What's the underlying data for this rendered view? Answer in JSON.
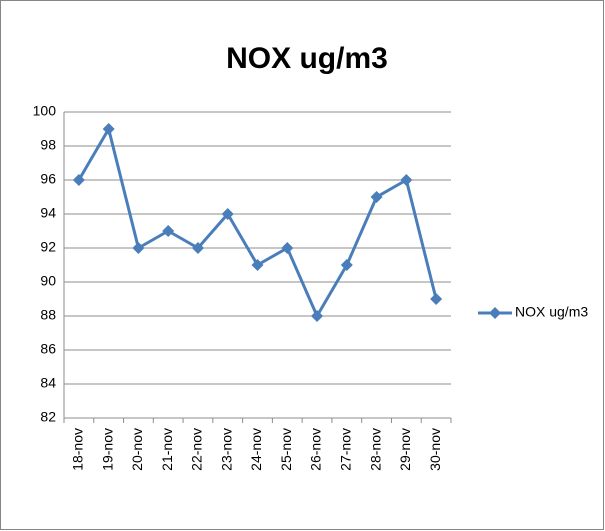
{
  "chart_data": {
    "type": "line",
    "title": "NOX ug/m3",
    "categories": [
      "18-nov",
      "19-nov",
      "20-nov",
      "21-nov",
      "22-nov",
      "23-nov",
      "24-nov",
      "25-nov",
      "26-nov",
      "27-nov",
      "28-nov",
      "29-nov",
      "30-nov"
    ],
    "series": [
      {
        "name": "NOX ug/m3",
        "color": "#4a7ebb",
        "values": [
          96,
          99,
          92,
          93,
          92,
          94,
          91,
          92,
          88,
          91,
          95,
          96,
          89
        ]
      }
    ],
    "ylim": [
      82,
      100
    ],
    "yticks": [
      82,
      84,
      86,
      88,
      90,
      92,
      94,
      96,
      98,
      100
    ],
    "grid": true,
    "legend": "right"
  }
}
